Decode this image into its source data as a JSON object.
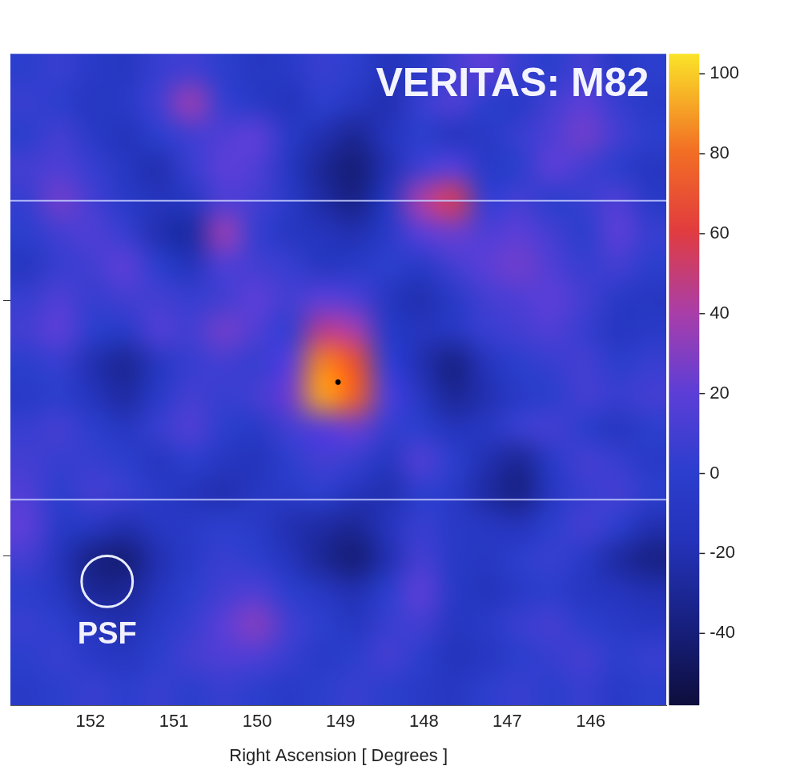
{
  "chart_data": {
    "type": "heatmap",
    "title": "VERITAS: M82",
    "x_label": "Right Ascension [ Degrees ]",
    "xlim": [
      152.96,
      145.09
    ],
    "xticks": [
      152,
      151,
      150,
      149,
      148,
      147,
      146
    ],
    "ylim": [
      68.415,
      70.965
    ],
    "yticks": [
      69,
      70
    ],
    "tick_labels": "x",
    "grid": false,
    "cells": [
      [
        0,
        5,
        -5,
        -10,
        5,
        10,
        0,
        -10,
        -5,
        5,
        0,
        -15,
        -5,
        10,
        20,
        5,
        0,
        10,
        -5,
        0
      ],
      [
        5,
        0,
        -10,
        -5,
        10,
        35,
        5,
        -5,
        -15,
        0,
        -10,
        -20,
        5,
        15,
        0,
        -5,
        10,
        20,
        5,
        -5
      ],
      [
        0,
        10,
        -5,
        -15,
        0,
        10,
        15,
        20,
        -5,
        -20,
        -30,
        -15,
        0,
        -10,
        -5,
        5,
        15,
        25,
        10,
        0
      ],
      [
        10,
        15,
        5,
        -10,
        -20,
        5,
        20,
        15,
        -10,
        -30,
        -40,
        -20,
        10,
        20,
        -5,
        0,
        20,
        10,
        0,
        -10
      ],
      [
        5,
        25,
        10,
        -5,
        -15,
        -10,
        15,
        10,
        -5,
        -25,
        -35,
        -10,
        40,
        55,
        5,
        10,
        0,
        5,
        15,
        -5
      ],
      [
        0,
        10,
        15,
        5,
        -20,
        -25,
        35,
        5,
        -10,
        -15,
        -20,
        -5,
        20,
        25,
        15,
        20,
        10,
        0,
        20,
        5
      ],
      [
        -10,
        5,
        10,
        20,
        0,
        -15,
        15,
        10,
        5,
        -10,
        -5,
        0,
        -5,
        10,
        20,
        25,
        15,
        5,
        10,
        0
      ],
      [
        5,
        15,
        5,
        10,
        10,
        5,
        10,
        20,
        10,
        20,
        15,
        -10,
        -20,
        -5,
        10,
        15,
        20,
        10,
        -5,
        -10
      ],
      [
        10,
        20,
        0,
        -5,
        15,
        10,
        25,
        15,
        5,
        45,
        40,
        -5,
        -15,
        -10,
        5,
        10,
        15,
        5,
        -10,
        -5
      ],
      [
        0,
        5,
        -20,
        -30,
        -10,
        5,
        10,
        5,
        20,
        85,
        70,
        5,
        -20,
        -35,
        -15,
        0,
        5,
        10,
        0,
        5
      ],
      [
        -5,
        0,
        -15,
        -25,
        -5,
        10,
        5,
        10,
        25,
        90,
        75,
        15,
        -10,
        -30,
        -20,
        -5,
        0,
        10,
        5,
        10
      ],
      [
        5,
        10,
        0,
        -10,
        5,
        15,
        0,
        -5,
        10,
        20,
        25,
        5,
        0,
        -15,
        -10,
        5,
        10,
        0,
        -10,
        0
      ],
      [
        10,
        5,
        5,
        0,
        -10,
        0,
        -10,
        -15,
        0,
        10,
        5,
        -10,
        15,
        0,
        -20,
        -30,
        -5,
        10,
        5,
        -5
      ],
      [
        15,
        0,
        10,
        5,
        -5,
        -15,
        -20,
        -10,
        -5,
        0,
        -15,
        -20,
        0,
        -5,
        -25,
        -35,
        -10,
        5,
        10,
        0
      ],
      [
        20,
        -5,
        -10,
        -20,
        -10,
        -5,
        0,
        -5,
        -20,
        -25,
        -30,
        -15,
        5,
        -5,
        -10,
        -15,
        0,
        10,
        0,
        -20
      ],
      [
        10,
        -15,
        -35,
        -40,
        -20,
        -5,
        5,
        0,
        -15,
        -30,
        -40,
        -20,
        10,
        -5,
        -10,
        0,
        5,
        -5,
        -25,
        -35
      ],
      [
        0,
        -10,
        -30,
        -30,
        -15,
        0,
        10,
        15,
        0,
        -10,
        -20,
        0,
        20,
        -5,
        -15,
        -5,
        0,
        -10,
        -15,
        -20
      ],
      [
        5,
        0,
        -15,
        -20,
        -5,
        5,
        20,
        30,
        10,
        0,
        -10,
        5,
        10,
        -10,
        -5,
        5,
        10,
        0,
        -5,
        -10
      ],
      [
        0,
        5,
        -5,
        -10,
        0,
        10,
        15,
        15,
        5,
        -5,
        0,
        10,
        0,
        -15,
        -10,
        0,
        5,
        10,
        0,
        5
      ],
      [
        -5,
        0,
        5,
        0,
        5,
        0,
        5,
        0,
        -5,
        0,
        5,
        0,
        -5,
        -10,
        0,
        5,
        0,
        5,
        -5,
        0
      ]
    ],
    "colorbar": {
      "lim": [
        -58,
        105
      ],
      "ticks": [
        -40,
        -20,
        0,
        20,
        40,
        60,
        80,
        100
      ]
    },
    "reference_lines": [
      70.39,
      69.22
    ],
    "source": {
      "ra": 149.03,
      "dec": 69.68
    },
    "psf": {
      "label": "PSF",
      "ra": 151.8,
      "dec": 68.9,
      "radius": 0.1
    }
  }
}
